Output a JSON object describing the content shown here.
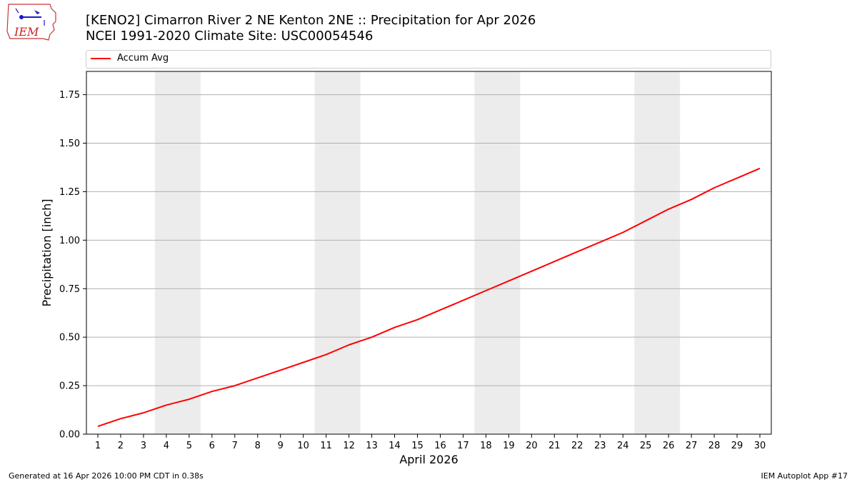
{
  "header": {
    "title_line1": "[KENO2] Cimarron River 2 NE Kenton 2NE :: Precipitation for Apr 2026",
    "title_line2": "NCEI 1991-2020 Climate Site: USC00054546",
    "logo_text": "IEM"
  },
  "footer": {
    "generated": "Generated at 16 Apr 2026 10:00 PM CDT in 0.38s",
    "app": "IEM Autoplot App #17"
  },
  "colors": {
    "series": "#ff0000",
    "weekend_shade": "#ececec",
    "grid": "#b0b0b0"
  },
  "chart_data": {
    "type": "line",
    "xlabel": "April 2026",
    "ylabel": "Precipitation [inch]",
    "ylim": [
      0,
      1.87
    ],
    "yticks": [
      0.0,
      0.25,
      0.5,
      0.75,
      1.0,
      1.25,
      1.5,
      1.75
    ],
    "ytick_labels": [
      "0.00",
      "0.25",
      "0.50",
      "0.75",
      "1.00",
      "1.25",
      "1.50",
      "1.75"
    ],
    "x": [
      1,
      2,
      3,
      4,
      5,
      6,
      7,
      8,
      9,
      10,
      11,
      12,
      13,
      14,
      15,
      16,
      17,
      18,
      19,
      20,
      21,
      22,
      23,
      24,
      25,
      26,
      27,
      28,
      29,
      30
    ],
    "grid": "horizontal",
    "legend_position": "top",
    "shaded_day_ranges": [
      [
        4,
        5
      ],
      [
        11,
        12
      ],
      [
        18,
        19
      ],
      [
        25,
        26
      ]
    ],
    "series": [
      {
        "name": "Accum Avg",
        "values": [
          0.04,
          0.08,
          0.11,
          0.15,
          0.18,
          0.22,
          0.25,
          0.29,
          0.33,
          0.37,
          0.41,
          0.46,
          0.5,
          0.55,
          0.59,
          0.64,
          0.69,
          0.74,
          0.79,
          0.84,
          0.89,
          0.94,
          0.99,
          1.04,
          1.1,
          1.16,
          1.21,
          1.27,
          1.32,
          1.37
        ]
      }
    ]
  }
}
